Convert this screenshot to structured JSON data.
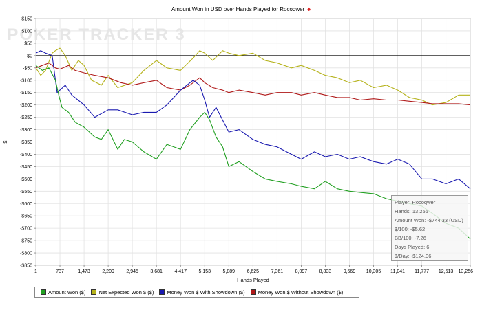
{
  "colors": {
    "amount_won": "#22a022",
    "net_expected": "#b5b21a",
    "showdown": "#1a1ab0",
    "no_showdown": "#b01a1a",
    "zero_line": "#000000",
    "grid": "#e2e2e2"
  },
  "watermark": "POKER TRACKER 3",
  "title_icon": "spade-icon",
  "tooltip": {
    "player": "Player: Rocoqwer",
    "hands": "Hands: 13,256",
    "amount": "Amount Won: -$744.33 (USD)",
    "per100": "$/100: -$5.62",
    "bb100": "BB/100: -7.26",
    "days": "Days Played: 6",
    "per_day": "$/Day: -$124.06"
  },
  "chart_data": {
    "type": "line",
    "title": "Amount Won in USD over Hands Played for Rocoqwer",
    "xlabel": "Hands Played",
    "ylabel": "$",
    "xlim": [
      1,
      13256
    ],
    "ylim": [
      -850,
      150
    ],
    "x_ticks": [
      1,
      737,
      1473,
      2209,
      2945,
      3681,
      4417,
      5153,
      5889,
      6625,
      7361,
      8097,
      8833,
      9569,
      10305,
      11041,
      11777,
      12513,
      13256
    ],
    "x_tick_labels": [
      "1",
      "737",
      "1,473",
      "2,209",
      "2,945",
      "3,681",
      "4,417",
      "5,153",
      "5,889",
      "6,625",
      "7,361",
      "8,097",
      "8,833",
      "9,569",
      "10,305",
      "11,041",
      "11,777",
      "12,513",
      "13,256"
    ],
    "y_ticks": [
      150,
      100,
      50,
      0,
      -50,
      -100,
      -150,
      -200,
      -250,
      -300,
      -350,
      -400,
      -450,
      -500,
      -550,
      -600,
      -650,
      -700,
      -750,
      -800,
      -850
    ],
    "y_tick_labels": [
      "$150",
      "$100",
      "$50",
      "$0",
      "-$50",
      "-$100",
      "-$150",
      "-$200",
      "-$250",
      "-$300",
      "-$350",
      "-$400",
      "-$450",
      "-$500",
      "-$550",
      "-$600",
      "-$650",
      "-$700",
      "-$750",
      "-$800",
      "-$850"
    ],
    "grid": true,
    "legend_position": "bottom",
    "series": [
      {
        "name": "Amount Won ($)",
        "color": "#22a022",
        "x": [
          1,
          200,
          400,
          600,
          700,
          800,
          1000,
          1200,
          1473,
          1800,
          2000,
          2209,
          2500,
          2700,
          2945,
          3300,
          3681,
          4000,
          4417,
          4700,
          5000,
          5153,
          5300,
          5500,
          5700,
          5889,
          6200,
          6625,
          7000,
          7361,
          7800,
          8097,
          8500,
          8833,
          9200,
          9569,
          9900,
          10305,
          10700,
          11041,
          11400,
          11777,
          12100,
          12513,
          12900,
          13256
        ],
        "y": [
          -40,
          -60,
          -50,
          -100,
          -160,
          -210,
          -230,
          -270,
          -290,
          -330,
          -340,
          -300,
          -380,
          -340,
          -350,
          -390,
          -420,
          -360,
          -380,
          -300,
          -250,
          -230,
          -260,
          -330,
          -370,
          -450,
          -430,
          -470,
          -500,
          -510,
          -520,
          -530,
          -540,
          -510,
          -540,
          -550,
          -555,
          -560,
          -580,
          -590,
          -600,
          -610,
          -640,
          -680,
          -700,
          -744
        ]
      },
      {
        "name": "Net Expected Won $ ($)",
        "color": "#b5b21a",
        "x": [
          1,
          150,
          300,
          500,
          600,
          737,
          900,
          1100,
          1300,
          1473,
          1700,
          2000,
          2209,
          2500,
          2945,
          3300,
          3681,
          4000,
          4417,
          4800,
          5000,
          5153,
          5400,
          5700,
          5889,
          6200,
          6625,
          7000,
          7361,
          7800,
          8097,
          8500,
          8833,
          9200,
          9569,
          9900,
          10305,
          10700,
          11041,
          11400,
          11777,
          12100,
          12513,
          12900,
          13256
        ],
        "y": [
          -50,
          -80,
          -60,
          10,
          20,
          30,
          0,
          -60,
          -20,
          -40,
          -100,
          -120,
          -80,
          -130,
          -110,
          -60,
          -20,
          -50,
          -60,
          -10,
          20,
          10,
          -20,
          20,
          10,
          0,
          10,
          -20,
          -30,
          -50,
          -40,
          -60,
          -80,
          -90,
          -110,
          -100,
          -130,
          -120,
          -140,
          -170,
          -180,
          -200,
          -190,
          -160,
          -160
        ]
      },
      {
        "name": "Money Won $ With Showdown ($)",
        "color": "#1a1ab0",
        "x": [
          1,
          150,
          300,
          500,
          650,
          737,
          900,
          1100,
          1473,
          1800,
          2209,
          2500,
          2945,
          3300,
          3681,
          4000,
          4417,
          4800,
          5000,
          5153,
          5300,
          5500,
          5889,
          6200,
          6625,
          7000,
          7361,
          7800,
          8097,
          8500,
          8833,
          9200,
          9569,
          9900,
          10305,
          10700,
          11041,
          11400,
          11777,
          12100,
          12513,
          12900,
          13256
        ],
        "y": [
          10,
          20,
          10,
          0,
          -150,
          -140,
          -120,
          -160,
          -200,
          -250,
          -220,
          -220,
          -240,
          -230,
          -230,
          -200,
          -140,
          -100,
          -120,
          -180,
          -250,
          -210,
          -310,
          -300,
          -340,
          -360,
          -370,
          -400,
          -420,
          -390,
          -410,
          -400,
          -420,
          -410,
          -430,
          -440,
          -420,
          -440,
          -500,
          -500,
          -520,
          -500,
          -540
        ]
      },
      {
        "name": "Money Won $ Without Showdown ($)",
        "color": "#b01a1a",
        "x": [
          1,
          200,
          400,
          600,
          737,
          1000,
          1200,
          1473,
          1800,
          2209,
          2600,
          2945,
          3300,
          3681,
          4000,
          4417,
          4700,
          5000,
          5153,
          5400,
          5700,
          5889,
          6200,
          6625,
          7000,
          7361,
          7800,
          8097,
          8500,
          8833,
          9200,
          9569,
          9900,
          10305,
          10700,
          11041,
          11400,
          11777,
          12100,
          12513,
          12900,
          13256
        ],
        "y": [
          -50,
          -40,
          -30,
          -50,
          -55,
          -40,
          -60,
          -70,
          -80,
          -90,
          -110,
          -120,
          -110,
          -100,
          -130,
          -140,
          -120,
          -90,
          -110,
          -130,
          -140,
          -150,
          -140,
          -150,
          -160,
          -150,
          -150,
          -160,
          -150,
          -160,
          -170,
          -170,
          -180,
          -175,
          -180,
          -180,
          -185,
          -190,
          -195,
          -195,
          -195,
          -200
        ]
      }
    ]
  }
}
